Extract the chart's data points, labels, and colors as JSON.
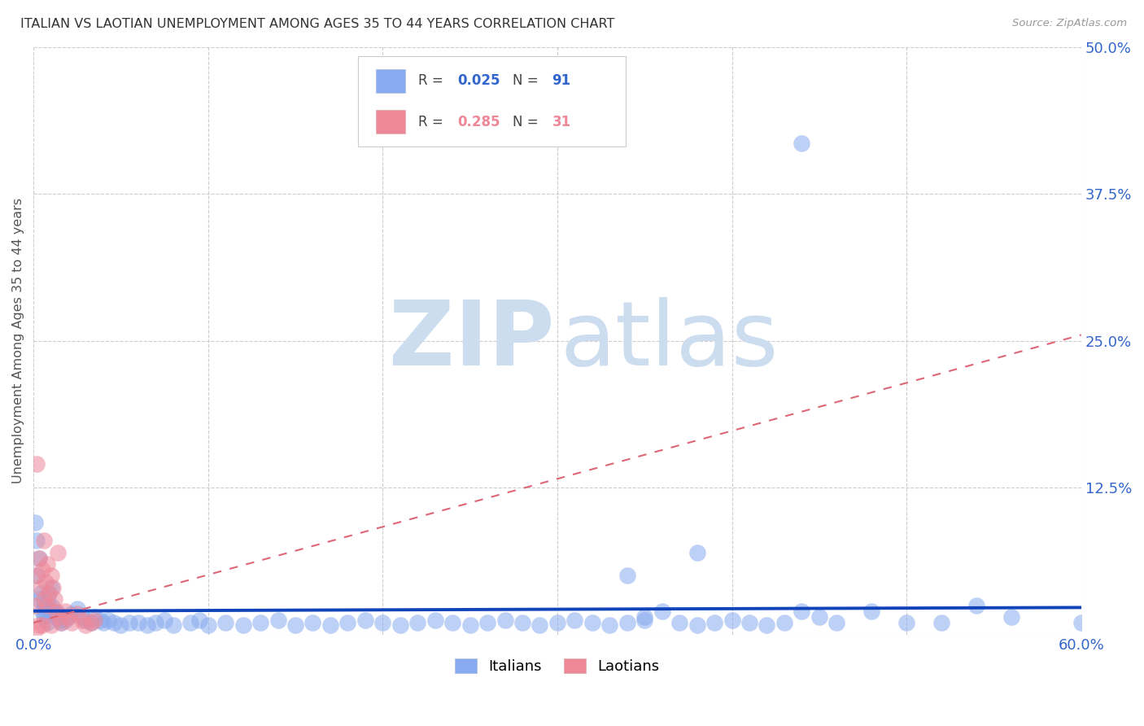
{
  "title": "ITALIAN VS LAOTIAN UNEMPLOYMENT AMONG AGES 35 TO 44 YEARS CORRELATION CHART",
  "source": "Source: ZipAtlas.com",
  "ylabel": "Unemployment Among Ages 35 to 44 years",
  "xlim": [
    0.0,
    0.6
  ],
  "ylim": [
    0.0,
    0.5
  ],
  "xticks": [
    0.0,
    0.1,
    0.2,
    0.3,
    0.4,
    0.5,
    0.6
  ],
  "yticks": [
    0.0,
    0.125,
    0.25,
    0.375,
    0.5
  ],
  "xtick_labels": [
    "0.0%",
    "",
    "",
    "",
    "",
    "",
    "60.0%"
  ],
  "ytick_labels": [
    "",
    "12.5%",
    "25.0%",
    "37.5%",
    "50.0%"
  ],
  "background_color": "#ffffff",
  "grid_color": "#cccccc",
  "title_color": "#333333",
  "axis_label_color": "#555555",
  "tick_color_x": "#3366cc",
  "tick_color_y": "#3366cc",
  "watermark_zip_color": "#ccddf0",
  "watermark_atlas_color": "#ccddf0",
  "legend_label1": "Italians",
  "legend_label2": "Laotians",
  "italian_color": "#88aaee",
  "laotian_color": "#ee8899",
  "italian_trend_color": "#1144bb",
  "laotian_trend_color": "#dd6677",
  "italian_x": [
    0.001,
    0.002,
    0.002,
    0.003,
    0.003,
    0.004,
    0.005,
    0.006,
    0.006,
    0.007,
    0.007,
    0.008,
    0.008,
    0.009,
    0.01,
    0.01,
    0.011,
    0.012,
    0.013,
    0.014,
    0.015,
    0.016,
    0.017,
    0.018,
    0.02,
    0.022,
    0.025,
    0.028,
    0.03,
    0.033,
    0.035,
    0.038,
    0.04,
    0.043,
    0.046,
    0.05,
    0.055,
    0.06,
    0.065,
    0.07,
    0.075,
    0.08,
    0.09,
    0.095,
    0.1,
    0.11,
    0.12,
    0.13,
    0.14,
    0.15,
    0.16,
    0.17,
    0.18,
    0.19,
    0.2,
    0.21,
    0.22,
    0.23,
    0.24,
    0.25,
    0.26,
    0.27,
    0.28,
    0.29,
    0.3,
    0.31,
    0.32,
    0.33,
    0.34,
    0.35,
    0.36,
    0.37,
    0.38,
    0.39,
    0.4,
    0.41,
    0.42,
    0.43,
    0.44,
    0.45,
    0.46,
    0.48,
    0.5,
    0.52,
    0.54,
    0.56,
    0.6,
    0.34,
    0.35,
    0.38,
    0.44
  ],
  "italian_y": [
    0.095,
    0.08,
    0.05,
    0.03,
    0.065,
    0.035,
    0.02,
    0.025,
    0.015,
    0.022,
    0.018,
    0.028,
    0.01,
    0.035,
    0.04,
    0.025,
    0.02,
    0.018,
    0.015,
    0.018,
    0.012,
    0.01,
    0.015,
    0.012,
    0.015,
    0.018,
    0.022,
    0.015,
    0.012,
    0.01,
    0.015,
    0.012,
    0.01,
    0.012,
    0.01,
    0.008,
    0.01,
    0.01,
    0.008,
    0.01,
    0.012,
    0.008,
    0.01,
    0.012,
    0.008,
    0.01,
    0.008,
    0.01,
    0.012,
    0.008,
    0.01,
    0.008,
    0.01,
    0.012,
    0.01,
    0.008,
    0.01,
    0.012,
    0.01,
    0.008,
    0.01,
    0.012,
    0.01,
    0.008,
    0.01,
    0.012,
    0.01,
    0.008,
    0.01,
    0.012,
    0.02,
    0.01,
    0.008,
    0.01,
    0.012,
    0.01,
    0.008,
    0.01,
    0.02,
    0.015,
    0.01,
    0.02,
    0.01,
    0.01,
    0.025,
    0.015,
    0.01,
    0.05,
    0.015,
    0.07,
    0.418
  ],
  "laotian_x": [
    0.001,
    0.002,
    0.002,
    0.003,
    0.004,
    0.005,
    0.005,
    0.006,
    0.006,
    0.007,
    0.008,
    0.008,
    0.009,
    0.01,
    0.01,
    0.011,
    0.012,
    0.013,
    0.014,
    0.015,
    0.016,
    0.018,
    0.02,
    0.022,
    0.025,
    0.028,
    0.03,
    0.033,
    0.035,
    0.003,
    0.002
  ],
  "laotian_y": [
    0.025,
    0.05,
    0.005,
    0.065,
    0.04,
    0.055,
    0.008,
    0.03,
    0.08,
    0.045,
    0.06,
    0.025,
    0.035,
    0.05,
    0.008,
    0.04,
    0.03,
    0.02,
    0.07,
    0.015,
    0.01,
    0.02,
    0.015,
    0.01,
    0.018,
    0.012,
    0.008,
    0.01,
    0.012,
    0.008,
    0.145
  ],
  "italian_trend_x": [
    0.0,
    0.6
  ],
  "italian_trend_y": [
    0.02,
    0.023
  ],
  "laotian_trend_x": [
    0.0,
    0.6
  ],
  "laotian_trend_y": [
    0.01,
    0.255
  ]
}
